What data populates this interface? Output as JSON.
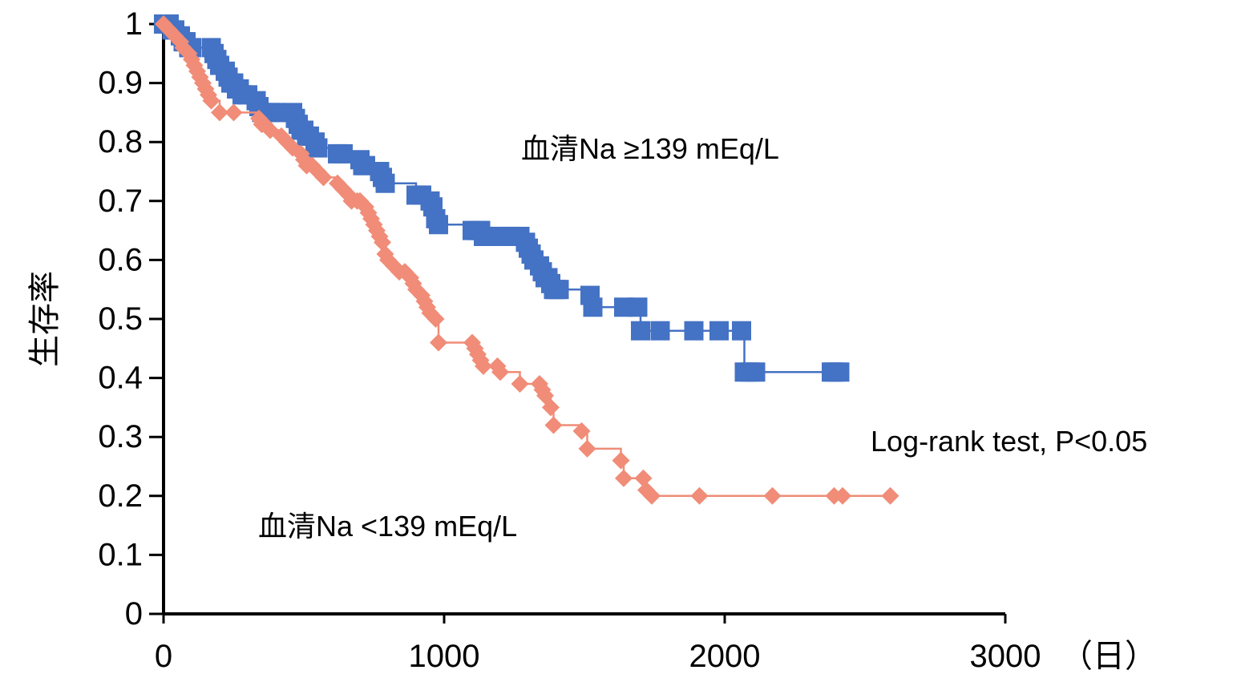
{
  "chart_data": {
    "type": "line",
    "subtype": "kaplan-meier",
    "title": "",
    "xlabel": "（日）",
    "ylabel": "生存率",
    "xlim": [
      0,
      3000
    ],
    "ylim": [
      0,
      1
    ],
    "x_ticks": [
      0,
      1000,
      2000,
      3000
    ],
    "x_tick_labels": [
      "0",
      "1000",
      "2000",
      "3000"
    ],
    "y_ticks": [
      0,
      0.1,
      0.2,
      0.3,
      0.4,
      0.5,
      0.6,
      0.7,
      0.8,
      0.9,
      1
    ],
    "y_tick_labels": [
      "0",
      "0.1",
      "0.2",
      "0.3",
      "0.4",
      "0.5",
      "0.6",
      "0.7",
      "0.8",
      "0.9",
      "1"
    ],
    "grid": false,
    "annotations": {
      "high_label": "血清Na ≥139 mEq/L",
      "low_label": "血清Na <139 mEq/L",
      "test_label": "Log-rank test, P<0.05"
    },
    "series": [
      {
        "name": "血清Na ≥139 mEq/L",
        "color": "#4472C4",
        "marker": "square",
        "x": [
          0,
          10,
          20,
          30,
          40,
          60,
          70,
          80,
          90,
          100,
          170,
          180,
          190,
          200,
          220,
          230,
          240,
          250,
          260,
          270,
          280,
          300,
          330,
          340,
          350,
          380,
          400,
          460,
          470,
          480,
          490,
          500,
          510,
          520,
          540,
          550,
          620,
          640,
          700,
          710,
          720,
          770,
          780,
          790,
          900,
          920,
          950,
          960,
          970,
          980,
          1100,
          1120,
          1130,
          1140,
          1150,
          1200,
          1230,
          1270,
          1290,
          1300,
          1310,
          1320,
          1340,
          1350,
          1360,
          1370,
          1380,
          1390,
          1400,
          1410,
          1520,
          1530,
          1640,
          1690,
          1700,
          1770,
          1890,
          1980,
          2060,
          2070,
          2090,
          2110,
          2380,
          2390,
          2410
        ],
        "y": [
          1.0,
          1.0,
          1.0,
          0.99,
          0.99,
          0.98,
          0.97,
          0.97,
          0.96,
          0.96,
          0.96,
          0.95,
          0.94,
          0.93,
          0.92,
          0.91,
          0.9,
          0.9,
          0.89,
          0.89,
          0.88,
          0.88,
          0.87,
          0.86,
          0.85,
          0.85,
          0.85,
          0.85,
          0.84,
          0.83,
          0.82,
          0.82,
          0.81,
          0.81,
          0.8,
          0.79,
          0.78,
          0.78,
          0.77,
          0.76,
          0.76,
          0.75,
          0.74,
          0.73,
          0.71,
          0.71,
          0.7,
          0.69,
          0.67,
          0.66,
          0.65,
          0.65,
          0.65,
          0.64,
          0.64,
          0.64,
          0.64,
          0.64,
          0.63,
          0.62,
          0.61,
          0.6,
          0.59,
          0.58,
          0.57,
          0.57,
          0.56,
          0.55,
          0.55,
          0.55,
          0.54,
          0.52,
          0.52,
          0.52,
          0.48,
          0.48,
          0.48,
          0.48,
          0.48,
          0.41,
          0.41,
          0.41,
          0.41,
          0.41,
          0.41
        ]
      },
      {
        "name": "血清Na <139 mEq/L",
        "color": "#F08C77",
        "marker": "diamond",
        "x": [
          0,
          20,
          40,
          60,
          70,
          90,
          100,
          110,
          120,
          130,
          140,
          150,
          160,
          170,
          200,
          250,
          340,
          350,
          360,
          380,
          420,
          440,
          460,
          490,
          500,
          510,
          530,
          550,
          570,
          620,
          640,
          660,
          670,
          690,
          700,
          720,
          730,
          740,
          750,
          760,
          770,
          780,
          790,
          800,
          820,
          840,
          860,
          880,
          890,
          900,
          920,
          930,
          940,
          950,
          970,
          980,
          1100,
          1110,
          1120,
          1130,
          1140,
          1190,
          1200,
          1270,
          1340,
          1350,
          1360,
          1380,
          1390,
          1490,
          1510,
          1630,
          1640,
          1710,
          1720,
          1740,
          1910,
          2170,
          2390,
          2420,
          2590
        ],
        "y": [
          1.0,
          0.99,
          0.98,
          0.97,
          0.96,
          0.95,
          0.94,
          0.93,
          0.92,
          0.91,
          0.9,
          0.89,
          0.88,
          0.87,
          0.85,
          0.85,
          0.84,
          0.83,
          0.83,
          0.82,
          0.81,
          0.8,
          0.79,
          0.78,
          0.77,
          0.76,
          0.76,
          0.75,
          0.74,
          0.73,
          0.72,
          0.71,
          0.7,
          0.7,
          0.7,
          0.69,
          0.68,
          0.67,
          0.66,
          0.65,
          0.64,
          0.63,
          0.61,
          0.6,
          0.59,
          0.58,
          0.58,
          0.57,
          0.56,
          0.55,
          0.54,
          0.53,
          0.52,
          0.51,
          0.5,
          0.46,
          0.46,
          0.45,
          0.44,
          0.43,
          0.42,
          0.42,
          0.41,
          0.39,
          0.39,
          0.38,
          0.37,
          0.35,
          0.32,
          0.31,
          0.28,
          0.26,
          0.23,
          0.23,
          0.21,
          0.2,
          0.2,
          0.2,
          0.2,
          0.2,
          0.2
        ]
      }
    ]
  }
}
